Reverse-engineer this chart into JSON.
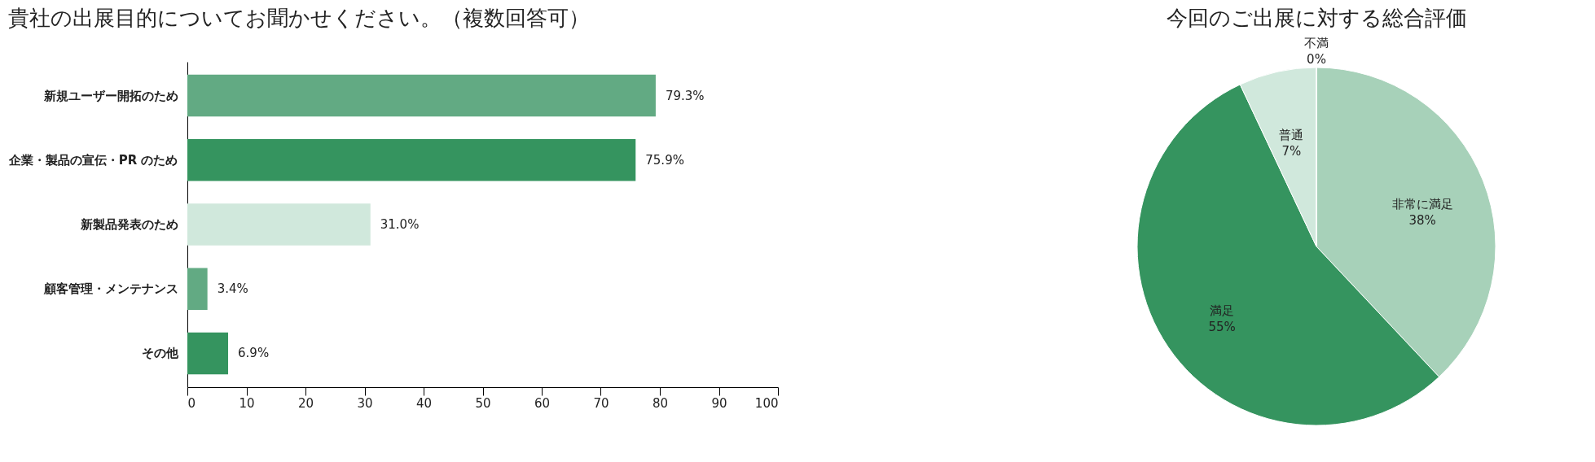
{
  "chart_data": [
    {
      "type": "bar",
      "orientation": "horizontal",
      "title": "貴社の出展目的についてお聞かせください。（複数回答可）",
      "categories": [
        "新規ユーザー開拓のため",
        "企業・製品の宣伝・PR のため",
        "新製品発表のため",
        "顧客管理・メンテナンス",
        "その他"
      ],
      "values": [
        79.3,
        75.9,
        31.0,
        3.4,
        6.9
      ],
      "colors": [
        "#62aa83",
        "#35945f",
        "#d0e8dc",
        "#62aa83",
        "#35945f"
      ],
      "value_labels": [
        "79.3%",
        "75.9%",
        "31.0%",
        "3.4%",
        "6.9%"
      ],
      "xlim": [
        0,
        100
      ],
      "xticks": [
        0,
        10,
        20,
        30,
        40,
        50,
        60,
        70,
        80,
        90,
        100
      ],
      "grid": false
    },
    {
      "type": "pie",
      "title": "今回のご出展に対する総合評価",
      "categories": [
        "非常に満足",
        "満足",
        "普通",
        "不満"
      ],
      "values": [
        38,
        55,
        7,
        0
      ],
      "colors": [
        "#a7d1b9",
        "#35945f",
        "#d0e8dc",
        "#d0e8dc"
      ],
      "value_labels": [
        "38%",
        "55%",
        "7%",
        "0%"
      ]
    }
  ]
}
